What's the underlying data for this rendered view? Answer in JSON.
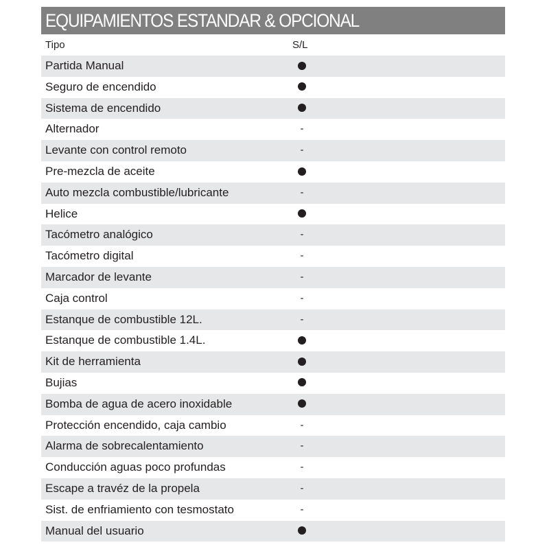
{
  "title": "EQUIPAMIENTOS ESTANDAR & OPCIONAL",
  "columns": {
    "type": "Tipo",
    "sl": "S/L"
  },
  "legend": {
    "included": "dot-icon",
    "not_included": "-"
  },
  "rows": [
    {
      "name": "Partida Manual",
      "included": true
    },
    {
      "name": "Seguro de encendido",
      "included": true
    },
    {
      "name": "Sistema de encendido",
      "included": true
    },
    {
      "name": "Alternador",
      "included": false
    },
    {
      "name": "Levante con control remoto",
      "included": false
    },
    {
      "name": "Pre-mezcla de aceite",
      "included": true
    },
    {
      "name": "Auto mezcla combustible/lubricante",
      "included": false
    },
    {
      "name": "Helice",
      "included": true
    },
    {
      "name": "Tacómetro analógico",
      "included": false
    },
    {
      "name": "Tacómetro digital",
      "included": false
    },
    {
      "name": "Marcador de levante",
      "included": false
    },
    {
      "name": "Caja control",
      "included": false
    },
    {
      "name": "Estanque de combustible 12L.",
      "included": false
    },
    {
      "name": "Estanque de combustible 1.4L.",
      "included": true
    },
    {
      "name": "Kit de herramienta",
      "included": true
    },
    {
      "name": "Bujias",
      "included": true
    },
    {
      "name": "Bomba de agua de acero inoxidable",
      "included": true
    },
    {
      "name": "Protección encendido, caja cambio",
      "included": false
    },
    {
      "name": "Alarma de sobrecalentamiento",
      "included": false
    },
    {
      "name": "Conducción aguas poco profundas",
      "included": false
    },
    {
      "name": "Escape a travéz de la propela",
      "included": false
    },
    {
      "name": "Sist. de enfriamiento con tesmostato",
      "included": false
    },
    {
      "name": "Manual del usuario",
      "included": true
    }
  ]
}
